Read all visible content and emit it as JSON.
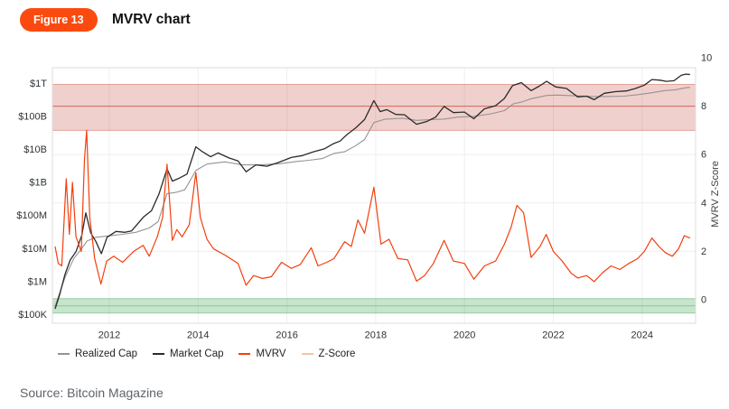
{
  "header": {
    "badge": "Figure 13",
    "title": "MVRV chart"
  },
  "source": "Source: Bitcoin Magazine",
  "colors": {
    "accent": "#fb4a0f",
    "market_cap_line": "#2b2b2b",
    "realized_cap_line": "#949494",
    "mvrv_line": "#f53e0c",
    "zscore_swatch": "#f7c39b",
    "red_band": "#c0392b",
    "green_band": "#2e9e44",
    "grid": "#efefef",
    "frame": "#dcdcdc"
  },
  "chart_data": {
    "type": "line",
    "title": "MVRV chart",
    "x_axis": {
      "range": [
        2010.7,
        2025.2
      ],
      "ticks": [
        {
          "label": "2012",
          "value": 2012
        },
        {
          "label": "2014",
          "value": 2014
        },
        {
          "label": "2016",
          "value": 2016
        },
        {
          "label": "2018",
          "value": 2018
        },
        {
          "label": "2020",
          "value": 2020
        },
        {
          "label": "2022",
          "value": 2022
        },
        {
          "label": "2024",
          "value": 2024
        }
      ]
    },
    "left_axis": {
      "scale": "log",
      "unit": "USD",
      "ticks": [
        {
          "label": "$1T",
          "value": 1000000000000.0
        },
        {
          "label": "$100B",
          "value": 100000000000.0
        },
        {
          "label": "$10B",
          "value": 10000000000.0
        },
        {
          "label": "$1B",
          "value": 1000000000.0
        },
        {
          "label": "$100M",
          "value": 100000000.0
        },
        {
          "label": "$10M",
          "value": 10000000.0
        },
        {
          "label": "$1M",
          "value": 1000000.0
        },
        {
          "label": "$100K",
          "value": 100000.0
        }
      ]
    },
    "right_axis": {
      "label": "MVRV Z-Score",
      "scale": "linear",
      "range": [
        -1,
        10.5
      ],
      "ticks": [
        {
          "label": "10",
          "value": 10
        },
        {
          "label": "8",
          "value": 8
        },
        {
          "label": "6",
          "value": 6
        },
        {
          "label": "4",
          "value": 4
        },
        {
          "label": "2",
          "value": 2
        },
        {
          "label": "0",
          "value": 0
        }
      ]
    },
    "bands": {
      "red_zone": {
        "from": 7.0,
        "to": 8.9,
        "line": 8.0,
        "meaning": "overvalued zone"
      },
      "green_zone": {
        "from": -0.55,
        "to": 0.05,
        "line": -0.25,
        "meaning": "undervalued zone"
      }
    },
    "legend": [
      {
        "label": "Realized Cap",
        "color": "#949494"
      },
      {
        "label": "Market Cap",
        "color": "#2b2b2b"
      },
      {
        "label": "MVRV",
        "color": "#f53e0c"
      },
      {
        "label": "Z-Score",
        "color": "#f7c39b"
      }
    ],
    "series": [
      {
        "name": "Realized Cap",
        "axis": "left",
        "color": "#949494",
        "width": 1.1,
        "points": [
          [
            2010.78,
            180000.0
          ],
          [
            2011.0,
            1300000.0
          ],
          [
            2011.2,
            5000000.0
          ],
          [
            2011.35,
            9000000.0
          ],
          [
            2011.5,
            17000000.0
          ],
          [
            2011.7,
            22000000.0
          ],
          [
            2011.95,
            24000000.0
          ],
          [
            2012.3,
            27000000.0
          ],
          [
            2012.6,
            31000000.0
          ],
          [
            2012.9,
            42000000.0
          ],
          [
            2013.1,
            65000000.0
          ],
          [
            2013.3,
            460000000.0
          ],
          [
            2013.5,
            500000000.0
          ],
          [
            2013.7,
            600000000.0
          ],
          [
            2013.95,
            2300000000.0
          ],
          [
            2014.2,
            3600000000.0
          ],
          [
            2014.6,
            4200000000.0
          ],
          [
            2015.0,
            3400000000.0
          ],
          [
            2015.4,
            3400000000.0
          ],
          [
            2015.85,
            3700000000.0
          ],
          [
            2016.2,
            4300000000.0
          ],
          [
            2016.5,
            4700000000.0
          ],
          [
            2016.8,
            5300000000.0
          ],
          [
            2017.05,
            7500000000.0
          ],
          [
            2017.3,
            8500000000.0
          ],
          [
            2017.55,
            13000000000.0
          ],
          [
            2017.75,
            20000000000.0
          ],
          [
            2017.96,
            65000000000.0
          ],
          [
            2018.2,
            82000000000.0
          ],
          [
            2018.6,
            88000000000.0
          ],
          [
            2018.92,
            76000000000.0
          ],
          [
            2019.2,
            79000000000.0
          ],
          [
            2019.54,
            83000000000.0
          ],
          [
            2019.85,
            95000000000.0
          ],
          [
            2020.21,
            100000000000.0
          ],
          [
            2020.6,
            120000000000.0
          ],
          [
            2020.9,
            150000000000.0
          ],
          [
            2021.1,
            240000000000.0
          ],
          [
            2021.28,
            270000000000.0
          ],
          [
            2021.5,
            340000000000.0
          ],
          [
            2021.85,
            430000000000.0
          ],
          [
            2022.1,
            440000000000.0
          ],
          [
            2022.5,
            420000000000.0
          ],
          [
            2022.92,
            400000000000.0
          ],
          [
            2023.2,
            400000000000.0
          ],
          [
            2023.6,
            410000000000.0
          ],
          [
            2023.95,
            460000000000.0
          ],
          [
            2024.22,
            520000000000.0
          ],
          [
            2024.5,
            600000000000.0
          ],
          [
            2024.75,
            640000000000.0
          ],
          [
            2025.0,
            740000000000.0
          ],
          [
            2025.08,
            760000000000.0
          ]
        ]
      },
      {
        "name": "Market Cap",
        "axis": "left",
        "color": "#2b2b2b",
        "width": 1.3,
        "points": [
          [
            2010.78,
            150000.0
          ],
          [
            2010.88,
            400000.0
          ],
          [
            2011.0,
            1600000.0
          ],
          [
            2011.12,
            4500000.0
          ],
          [
            2011.25,
            8000000.0
          ],
          [
            2011.38,
            25000000.0
          ],
          [
            2011.47,
            120000000.0
          ],
          [
            2011.58,
            30000000.0
          ],
          [
            2011.7,
            16000000.0
          ],
          [
            2011.82,
            7000000.0
          ],
          [
            2011.95,
            22000000.0
          ],
          [
            2012.15,
            33000000.0
          ],
          [
            2012.35,
            31000000.0
          ],
          [
            2012.5,
            34000000.0
          ],
          [
            2012.77,
            90000000.0
          ],
          [
            2012.95,
            140000000.0
          ],
          [
            2013.12,
            450000000.0
          ],
          [
            2013.3,
            2600000000.0
          ],
          [
            2013.42,
            1100000000.0
          ],
          [
            2013.55,
            1300000000.0
          ],
          [
            2013.75,
            1800000000.0
          ],
          [
            2013.95,
            12000000000.0
          ],
          [
            2014.1,
            8500000000.0
          ],
          [
            2014.28,
            6000000000.0
          ],
          [
            2014.45,
            7800000000.0
          ],
          [
            2014.7,
            5500000000.0
          ],
          [
            2014.9,
            4500000000.0
          ],
          [
            2015.08,
            2100000000.0
          ],
          [
            2015.3,
            3400000000.0
          ],
          [
            2015.55,
            3100000000.0
          ],
          [
            2015.8,
            4000000000.0
          ],
          [
            2016.1,
            5700000000.0
          ],
          [
            2016.35,
            6500000000.0
          ],
          [
            2016.6,
            8500000000.0
          ],
          [
            2016.85,
            10500000000.0
          ],
          [
            2017.05,
            15000000000.0
          ],
          [
            2017.2,
            18000000000.0
          ],
          [
            2017.35,
            28000000000.0
          ],
          [
            2017.55,
            45000000000.0
          ],
          [
            2017.75,
            80000000000.0
          ],
          [
            2017.96,
            300000000000.0
          ],
          [
            2018.1,
            140000000000.0
          ],
          [
            2018.25,
            160000000000.0
          ],
          [
            2018.45,
            115000000000.0
          ],
          [
            2018.65,
            112000000000.0
          ],
          [
            2018.92,
            58000000000.0
          ],
          [
            2019.15,
            70000000000.0
          ],
          [
            2019.35,
            95000000000.0
          ],
          [
            2019.54,
            200000000000.0
          ],
          [
            2019.75,
            130000000000.0
          ],
          [
            2020.0,
            135000000000.0
          ],
          [
            2020.21,
            85000000000.0
          ],
          [
            2020.45,
            170000000000.0
          ],
          [
            2020.7,
            210000000000.0
          ],
          [
            2020.9,
            350000000000.0
          ],
          [
            2021.08,
            850000000000.0
          ],
          [
            2021.28,
            1050000000000.0
          ],
          [
            2021.5,
            600000000000.0
          ],
          [
            2021.68,
            820000000000.0
          ],
          [
            2021.85,
            1150000000000.0
          ],
          [
            2022.05,
            780000000000.0
          ],
          [
            2022.3,
            700000000000.0
          ],
          [
            2022.55,
            390000000000.0
          ],
          [
            2022.75,
            410000000000.0
          ],
          [
            2022.92,
            320000000000.0
          ],
          [
            2023.15,
            500000000000.0
          ],
          [
            2023.4,
            560000000000.0
          ],
          [
            2023.65,
            590000000000.0
          ],
          [
            2023.85,
            700000000000.0
          ],
          [
            2024.05,
            880000000000.0
          ],
          [
            2024.22,
            1300000000000.0
          ],
          [
            2024.4,
            1250000000000.0
          ],
          [
            2024.55,
            1150000000000.0
          ],
          [
            2024.72,
            1200000000000.0
          ],
          [
            2024.88,
            1750000000000.0
          ],
          [
            2024.98,
            1900000000000.0
          ],
          [
            2025.08,
            1850000000000.0
          ]
        ]
      },
      {
        "name": "MVRV",
        "axis": "right",
        "color": "#f53e0c",
        "width": 1.2,
        "points": [
          [
            2010.78,
            2.2
          ],
          [
            2010.85,
            1.5
          ],
          [
            2010.93,
            1.4
          ],
          [
            2011.03,
            5.0
          ],
          [
            2011.1,
            2.7
          ],
          [
            2011.17,
            4.85
          ],
          [
            2011.25,
            2.6
          ],
          [
            2011.37,
            2.0
          ],
          [
            2011.44,
            5.8
          ],
          [
            2011.49,
            7.0
          ],
          [
            2011.56,
            3.4
          ],
          [
            2011.67,
            1.7
          ],
          [
            2011.81,
            0.65
          ],
          [
            2011.94,
            1.6
          ],
          [
            2012.1,
            1.8
          ],
          [
            2012.3,
            1.55
          ],
          [
            2012.55,
            2.0
          ],
          [
            2012.76,
            2.25
          ],
          [
            2012.9,
            1.8
          ],
          [
            2013.08,
            2.6
          ],
          [
            2013.2,
            3.4
          ],
          [
            2013.3,
            5.6
          ],
          [
            2013.42,
            2.45
          ],
          [
            2013.52,
            2.9
          ],
          [
            2013.64,
            2.6
          ],
          [
            2013.8,
            3.1
          ],
          [
            2013.95,
            5.25
          ],
          [
            2014.05,
            3.4
          ],
          [
            2014.2,
            2.5
          ],
          [
            2014.35,
            2.1
          ],
          [
            2014.6,
            1.85
          ],
          [
            2014.9,
            1.5
          ],
          [
            2015.08,
            0.6
          ],
          [
            2015.25,
            1.0
          ],
          [
            2015.45,
            0.88
          ],
          [
            2015.65,
            0.95
          ],
          [
            2015.88,
            1.55
          ],
          [
            2016.1,
            1.3
          ],
          [
            2016.3,
            1.45
          ],
          [
            2016.55,
            2.15
          ],
          [
            2016.7,
            1.4
          ],
          [
            2016.9,
            1.55
          ],
          [
            2017.06,
            1.7
          ],
          [
            2017.3,
            2.4
          ],
          [
            2017.45,
            2.2
          ],
          [
            2017.6,
            3.3
          ],
          [
            2017.75,
            2.75
          ],
          [
            2017.96,
            4.65
          ],
          [
            2018.12,
            2.3
          ],
          [
            2018.3,
            2.5
          ],
          [
            2018.5,
            1.7
          ],
          [
            2018.72,
            1.65
          ],
          [
            2018.92,
            0.77
          ],
          [
            2019.1,
            1.0
          ],
          [
            2019.3,
            1.5
          ],
          [
            2019.54,
            2.45
          ],
          [
            2019.75,
            1.6
          ],
          [
            2020.0,
            1.5
          ],
          [
            2020.21,
            0.85
          ],
          [
            2020.45,
            1.4
          ],
          [
            2020.7,
            1.6
          ],
          [
            2020.9,
            2.3
          ],
          [
            2021.05,
            3.0
          ],
          [
            2021.18,
            3.9
          ],
          [
            2021.33,
            3.6
          ],
          [
            2021.5,
            1.75
          ],
          [
            2021.7,
            2.2
          ],
          [
            2021.84,
            2.7
          ],
          [
            2022.0,
            2.0
          ],
          [
            2022.2,
            1.6
          ],
          [
            2022.4,
            1.1
          ],
          [
            2022.55,
            0.9
          ],
          [
            2022.75,
            1.0
          ],
          [
            2022.92,
            0.75
          ],
          [
            2023.1,
            1.1
          ],
          [
            2023.3,
            1.4
          ],
          [
            2023.5,
            1.25
          ],
          [
            2023.7,
            1.5
          ],
          [
            2023.9,
            1.7
          ],
          [
            2024.05,
            2.0
          ],
          [
            2024.22,
            2.55
          ],
          [
            2024.38,
            2.2
          ],
          [
            2024.52,
            1.95
          ],
          [
            2024.68,
            1.8
          ],
          [
            2024.82,
            2.1
          ],
          [
            2024.95,
            2.65
          ],
          [
            2025.08,
            2.55
          ]
        ]
      }
    ]
  }
}
